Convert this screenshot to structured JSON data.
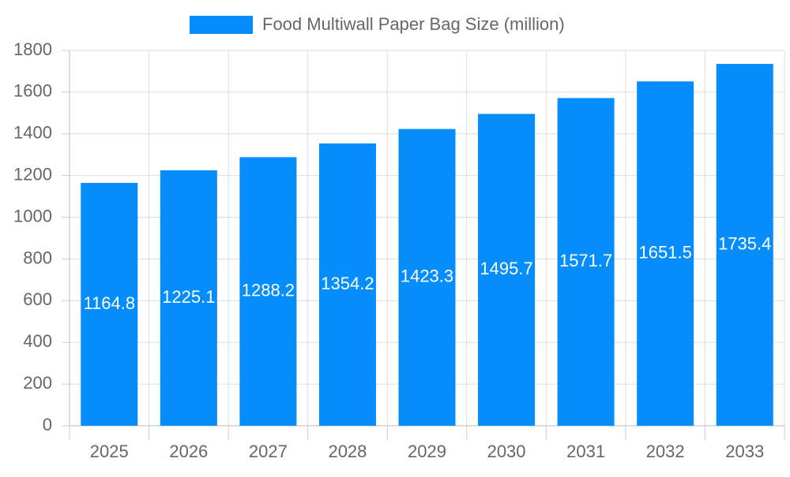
{
  "chart_data": {
    "type": "bar",
    "series": [
      {
        "name": "Food Multiwall Paper Bag Size (million)",
        "color": "#058dfc",
        "values": [
          1164.8,
          1225.1,
          1288.2,
          1354.2,
          1423.3,
          1495.7,
          1571.7,
          1651.5,
          1735.4
        ]
      }
    ],
    "categories": [
      "2025",
      "2026",
      "2027",
      "2028",
      "2029",
      "2030",
      "2031",
      "2032",
      "2033"
    ],
    "ylim": [
      0,
      1800
    ],
    "yticks": [
      0,
      200,
      400,
      600,
      800,
      1000,
      1200,
      1400,
      1600,
      1800
    ],
    "grid": true,
    "legend": "top"
  }
}
